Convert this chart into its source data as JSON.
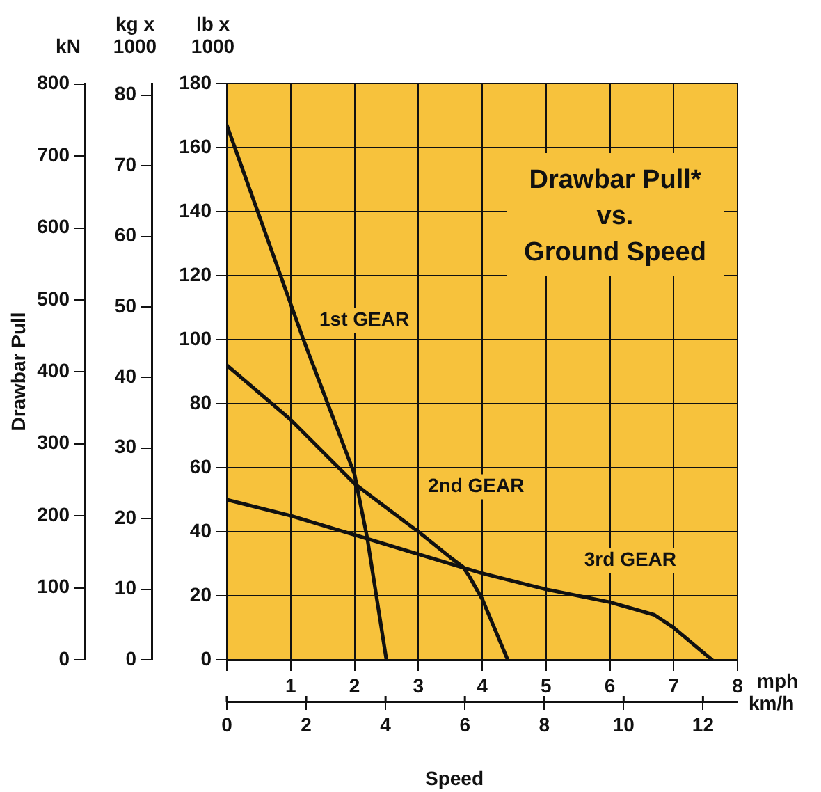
{
  "chart_data": {
    "type": "line",
    "title": "Drawbar Pull*\nvs.\nGround Speed",
    "xlabel": "mph",
    "x2label": "km/h",
    "ylabel": "lb x 1000",
    "y2label": "kg x 1000",
    "y3label": "kN",
    "xlim": [
      0,
      8
    ],
    "xticks": [
      {
        "value": 0,
        "label": null
      },
      1,
      2,
      3,
      4,
      5,
      6,
      7,
      8
    ],
    "x2lim": [
      0,
      12.87
    ],
    "x2ticks": [
      0,
      2,
      4,
      6,
      8,
      10,
      12
    ],
    "ylim": [
      0,
      180
    ],
    "yticks": [
      0,
      20,
      40,
      60,
      80,
      100,
      120,
      140,
      160,
      180
    ],
    "y2lim": [
      0,
      81.65
    ],
    "y2ticks": [
      0,
      10,
      20,
      30,
      40,
      50,
      60,
      70,
      80
    ],
    "y3lim": [
      0,
      800.7
    ],
    "y3ticks": [
      0,
      100,
      200,
      300,
      400,
      500,
      600,
      700,
      800
    ],
    "grid": true,
    "legend": false,
    "marker": "none",
    "line_style": "solid",
    "series": [
      {
        "name": "1st GEAR",
        "color": "#111111",
        "x": [
          0,
          1.2,
          2,
          2.1,
          2.2,
          2.5
        ],
        "values": [
          167,
          100,
          58,
          48,
          38,
          0
        ]
      },
      {
        "name": "2nd GEAR",
        "color": "#111111",
        "x": [
          0,
          1,
          2,
          3,
          3.5,
          3.7,
          3.8,
          4,
          4.4
        ],
        "values": [
          92,
          75,
          55,
          40,
          32,
          29,
          26,
          19,
          0
        ]
      },
      {
        "name": "3rd GEAR",
        "color": "#111111",
        "x": [
          0,
          1,
          2,
          3,
          4,
          5,
          6,
          6.7,
          7,
          7.6
        ],
        "values": [
          50,
          45,
          39,
          33,
          27,
          22,
          18,
          14,
          10,
          0
        ]
      }
    ],
    "annotations": [
      "Drawbar Pull",
      "Speed"
    ]
  }
}
